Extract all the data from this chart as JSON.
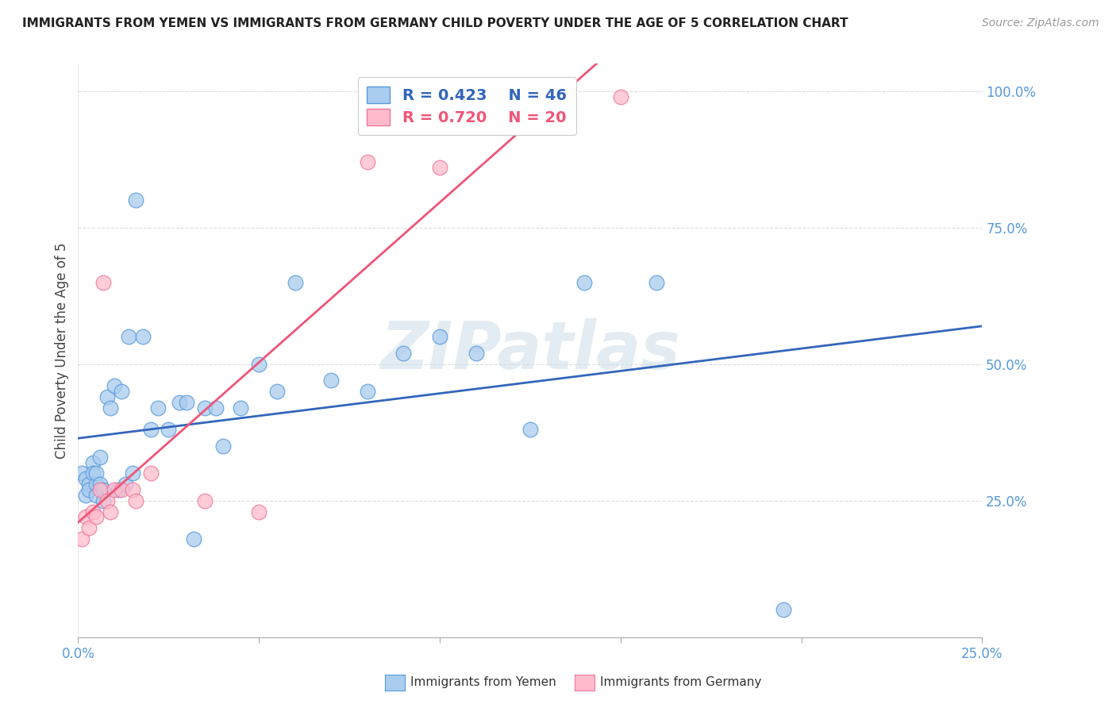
{
  "title": "IMMIGRANTS FROM YEMEN VS IMMIGRANTS FROM GERMANY CHILD POVERTY UNDER THE AGE OF 5 CORRELATION CHART",
  "source": "Source: ZipAtlas.com",
  "ylabel": "Child Poverty Under the Age of 5",
  "xlim": [
    0.0,
    0.25
  ],
  "ylim": [
    0.0,
    1.05
  ],
  "yemen_fill_color": "#AACCEE",
  "yemen_edge_color": "#5599DD",
  "germany_fill_color": "#FFBBCC",
  "germany_edge_color": "#EE7799",
  "trend_yemen_color": "#3366BB",
  "trend_germany_color": "#EE5577",
  "tick_color": "#5599DD",
  "grid_color": "#DDDDDD",
  "yemen_R": "0.423",
  "yemen_N": "46",
  "germany_R": "0.720",
  "germany_N": "20",
  "watermark": "ZIPatlas",
  "legend_label_1": "Immigrants from Yemen",
  "legend_label_2": "Immigrants from Germany",
  "yemen_x": [
    0.001,
    0.002,
    0.002,
    0.003,
    0.003,
    0.004,
    0.004,
    0.005,
    0.005,
    0.005,
    0.006,
    0.006,
    0.007,
    0.007,
    0.008,
    0.009,
    0.01,
    0.011,
    0.012,
    0.013,
    0.014,
    0.015,
    0.016,
    0.018,
    0.02,
    0.022,
    0.025,
    0.028,
    0.03,
    0.032,
    0.035,
    0.038,
    0.04,
    0.045,
    0.05,
    0.055,
    0.06,
    0.07,
    0.08,
    0.09,
    0.1,
    0.11,
    0.125,
    0.14,
    0.16,
    0.195
  ],
  "yemen_y": [
    0.3,
    0.26,
    0.29,
    0.28,
    0.27,
    0.32,
    0.3,
    0.28,
    0.3,
    0.26,
    0.33,
    0.28,
    0.27,
    0.25,
    0.44,
    0.42,
    0.46,
    0.27,
    0.45,
    0.28,
    0.55,
    0.3,
    0.8,
    0.55,
    0.38,
    0.42,
    0.38,
    0.43,
    0.43,
    0.18,
    0.42,
    0.42,
    0.35,
    0.42,
    0.5,
    0.45,
    0.65,
    0.47,
    0.45,
    0.52,
    0.55,
    0.52,
    0.38,
    0.65,
    0.65,
    0.05
  ],
  "germany_x": [
    0.001,
    0.002,
    0.003,
    0.004,
    0.005,
    0.006,
    0.007,
    0.008,
    0.009,
    0.01,
    0.012,
    0.015,
    0.016,
    0.02,
    0.035,
    0.05,
    0.08,
    0.1,
    0.115,
    0.15
  ],
  "germany_y": [
    0.18,
    0.22,
    0.2,
    0.23,
    0.22,
    0.27,
    0.65,
    0.25,
    0.23,
    0.27,
    0.27,
    0.27,
    0.25,
    0.3,
    0.25,
    0.23,
    0.87,
    0.86,
    0.99,
    0.99
  ]
}
